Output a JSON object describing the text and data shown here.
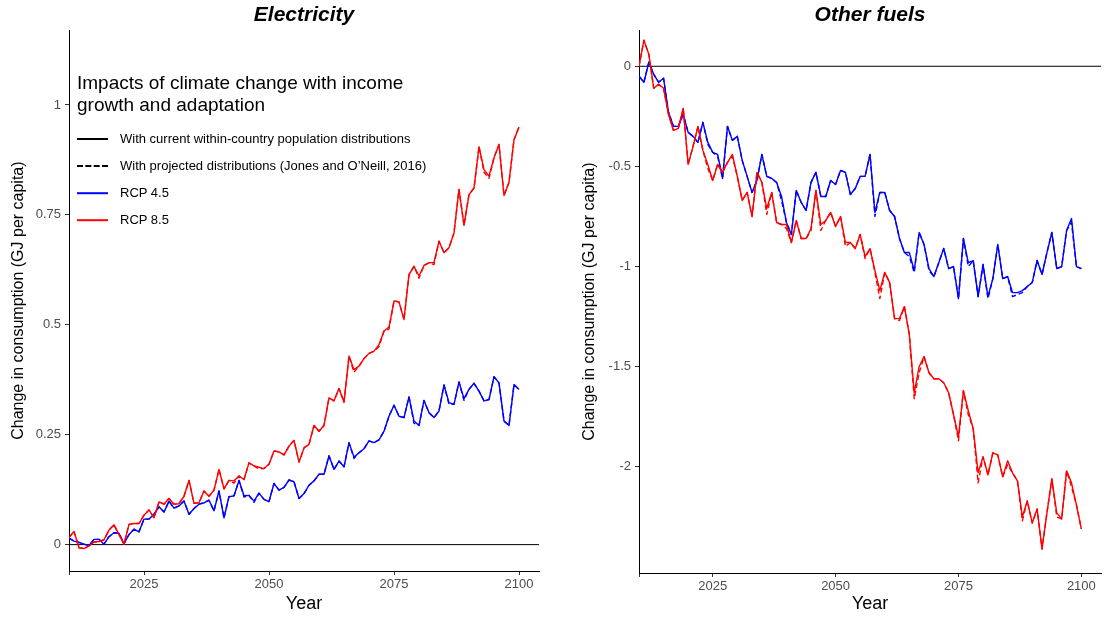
{
  "chart_data": [
    {
      "type": "line",
      "title": "Electricity",
      "xlabel": "Year",
      "ylabel": "Change in consumption (GJ per capita)",
      "legend_title": "Impacts of climate change with income growth and adaptation",
      "annotations": [
        "With current within-country population distributions",
        "With projected distributions (Jones and O’Neill, 2016)"
      ],
      "legend": "top left",
      "x": [
        2010,
        2011,
        2012,
        2013,
        2014,
        2015,
        2016,
        2017,
        2018,
        2019,
        2020,
        2021,
        2022,
        2023,
        2024,
        2025,
        2026,
        2027,
        2028,
        2029,
        2030,
        2031,
        2032,
        2033,
        2034,
        2035,
        2036,
        2037,
        2038,
        2039,
        2040,
        2041,
        2042,
        2043,
        2044,
        2045,
        2046,
        2047,
        2048,
        2049,
        2050,
        2051,
        2052,
        2053,
        2054,
        2055,
        2056,
        2057,
        2058,
        2059,
        2060,
        2061,
        2062,
        2063,
        2064,
        2065,
        2066,
        2067,
        2068,
        2069,
        2070,
        2071,
        2072,
        2073,
        2074,
        2075,
        2076,
        2077,
        2078,
        2079,
        2080,
        2081,
        2082,
        2083,
        2084,
        2085,
        2086,
        2087,
        2088,
        2089,
        2090,
        2091,
        2092,
        2093,
        2094,
        2095,
        2096,
        2097,
        2098,
        2099,
        2100
      ],
      "xlim": [
        2010,
        2104
      ],
      "xticks": [
        {
          "value": 2010,
          "label": null
        },
        2025,
        2050,
        2075,
        2100
      ],
      "ylim": [
        -0.06,
        1.17
      ],
      "yticks": [
        0,
        0.25,
        0.5,
        0.75,
        1
      ],
      "ref_lines": [
        {
          "axis": "y",
          "value": 0,
          "color": "#000000"
        }
      ],
      "series": [
        {
          "name": "RCP 4.5",
          "color": "#0000ff",
          "line_style": "solid",
          "values": [
            0.015,
            0.008,
            0.005,
            0.001,
            -0.002,
            0.012,
            0.012,
            0.001,
            0.018,
            0.027,
            0.026,
            0.002,
            0.023,
            0.035,
            0.029,
            0.058,
            0.058,
            0.069,
            0.086,
            0.074,
            0.099,
            0.083,
            0.088,
            0.099,
            0.069,
            0.082,
            0.092,
            0.095,
            0.101,
            0.077,
            0.122,
            0.061,
            0.109,
            0.111,
            0.146,
            0.111,
            0.112,
            0.099,
            0.117,
            0.103,
            0.098,
            0.139,
            0.124,
            0.13,
            0.147,
            0.143,
            0.105,
            0.116,
            0.135,
            0.145,
            0.16,
            0.16,
            0.202,
            0.171,
            0.19,
            0.177,
            0.232,
            0.199,
            0.209,
            0.218,
            0.236,
            0.232,
            0.238,
            0.258,
            0.292,
            0.317,
            0.292,
            0.289,
            0.336,
            0.281,
            0.271,
            0.328,
            0.3,
            0.289,
            0.304,
            0.363,
            0.323,
            0.319,
            0.37,
            0.332,
            0.353,
            0.367,
            0.349,
            0.327,
            0.33,
            0.382,
            0.368,
            0.281,
            0.271,
            0.364,
            0.353
          ]
        },
        {
          "color": "#0000ff",
          "line_style": "dashed",
          "values": [
            0.015,
            0.008,
            0.005,
            0.001,
            -0.002,
            0.012,
            0.012,
            0.001,
            0.018,
            0.027,
            0.026,
            0.002,
            0.023,
            0.035,
            0.029,
            0.058,
            0.058,
            0.069,
            0.086,
            0.074,
            0.099,
            0.083,
            0.088,
            0.099,
            0.069,
            0.082,
            0.092,
            0.095,
            0.101,
            0.077,
            0.122,
            0.061,
            0.109,
            0.111,
            0.146,
            0.108,
            0.112,
            0.096,
            0.117,
            0.103,
            0.098,
            0.139,
            0.124,
            0.13,
            0.147,
            0.143,
            0.105,
            0.116,
            0.135,
            0.145,
            0.16,
            0.16,
            0.202,
            0.171,
            0.19,
            0.177,
            0.232,
            0.196,
            0.209,
            0.218,
            0.236,
            0.232,
            0.238,
            0.258,
            0.292,
            0.317,
            0.292,
            0.289,
            0.336,
            0.276,
            0.271,
            0.328,
            0.3,
            0.289,
            0.304,
            0.363,
            0.319,
            0.319,
            0.37,
            0.328,
            0.353,
            0.367,
            0.349,
            0.327,
            0.33,
            0.382,
            0.368,
            0.281,
            0.271,
            0.364,
            0.353
          ]
        },
        {
          "name": "RCP 8.5",
          "color": "#ff0000",
          "line_style": "solid",
          "values": [
            0.016,
            0.03,
            -0.007,
            -0.009,
            -0.003,
            0.006,
            0.007,
            0.011,
            0.033,
            0.045,
            0.023,
            0.001,
            0.046,
            0.048,
            0.048,
            0.067,
            0.079,
            0.061,
            0.097,
            0.092,
            0.105,
            0.092,
            0.093,
            0.11,
            0.146,
            0.094,
            0.095,
            0.122,
            0.11,
            0.124,
            0.171,
            0.127,
            0.146,
            0.145,
            0.156,
            0.148,
            0.186,
            0.179,
            0.176,
            0.173,
            0.183,
            0.213,
            0.211,
            0.204,
            0.224,
            0.237,
            0.188,
            0.22,
            0.228,
            0.271,
            0.258,
            0.271,
            0.334,
            0.327,
            0.355,
            0.324,
            0.429,
            0.398,
            0.406,
            0.423,
            0.435,
            0.44,
            0.455,
            0.486,
            0.495,
            0.554,
            0.552,
            0.512,
            0.614,
            0.633,
            0.611,
            0.635,
            0.641,
            0.642,
            0.69,
            0.664,
            0.675,
            0.709,
            0.808,
            0.726,
            0.796,
            0.811,
            0.905,
            0.853,
            0.838,
            0.88,
            0.91,
            0.794,
            0.824,
            0.921,
            0.95
          ]
        },
        {
          "color": "#ff0000",
          "line_style": "dashed",
          "values": [
            0.016,
            0.03,
            -0.007,
            -0.009,
            -0.003,
            0.006,
            0.007,
            0.011,
            0.033,
            0.045,
            0.023,
            0.001,
            0.046,
            0.048,
            0.048,
            0.067,
            0.079,
            0.061,
            0.097,
            0.092,
            0.105,
            0.092,
            0.093,
            0.11,
            0.146,
            0.094,
            0.095,
            0.122,
            0.11,
            0.124,
            0.171,
            0.127,
            0.146,
            0.14,
            0.156,
            0.148,
            0.186,
            0.179,
            0.172,
            0.173,
            0.183,
            0.213,
            0.211,
            0.204,
            0.224,
            0.237,
            0.188,
            0.22,
            0.228,
            0.271,
            0.258,
            0.271,
            0.334,
            0.327,
            0.355,
            0.324,
            0.429,
            0.392,
            0.406,
            0.423,
            0.435,
            0.44,
            0.45,
            0.486,
            0.49,
            0.554,
            0.552,
            0.512,
            0.614,
            0.633,
            0.606,
            0.635,
            0.641,
            0.637,
            0.69,
            0.664,
            0.675,
            0.709,
            0.808,
            0.726,
            0.796,
            0.811,
            0.905,
            0.847,
            0.833,
            0.88,
            0.91,
            0.794,
            0.824,
            0.921,
            0.95
          ]
        }
      ]
    },
    {
      "type": "line",
      "title": "Other fuels",
      "xlabel": "Year",
      "ylabel": "Change in consumption (GJ per capita)",
      "x": [
        2010,
        2011,
        2012,
        2013,
        2014,
        2015,
        2016,
        2017,
        2018,
        2019,
        2020,
        2021,
        2022,
        2023,
        2024,
        2025,
        2026,
        2027,
        2028,
        2029,
        2030,
        2031,
        2032,
        2033,
        2034,
        2035,
        2036,
        2037,
        2038,
        2039,
        2040,
        2041,
        2042,
        2043,
        2044,
        2045,
        2046,
        2047,
        2048,
        2049,
        2050,
        2051,
        2052,
        2053,
        2054,
        2055,
        2056,
        2057,
        2058,
        2059,
        2060,
        2061,
        2062,
        2063,
        2064,
        2065,
        2066,
        2067,
        2068,
        2069,
        2070,
        2071,
        2072,
        2073,
        2074,
        2075,
        2076,
        2077,
        2078,
        2079,
        2080,
        2081,
        2082,
        2083,
        2084,
        2085,
        2086,
        2087,
        2088,
        2089,
        2090,
        2091,
        2092,
        2093,
        2094,
        2095,
        2096,
        2097,
        2098,
        2099,
        2100
      ],
      "xlim": [
        2010,
        2104
      ],
      "xticks": [
        {
          "value": 2010,
          "label": null
        },
        2025,
        2050,
        2075,
        2100
      ],
      "ylim": [
        -2.53,
        0.18
      ],
      "yticks": [
        -2,
        -1.5,
        -1,
        -0.5,
        0
      ],
      "ref_lines": [
        {
          "axis": "y",
          "value": 0,
          "color": "#000000"
        }
      ],
      "series": [
        {
          "color": "#0000ff",
          "line_style": "solid",
          "values": [
            -0.05,
            -0.08,
            0.02,
            -0.04,
            -0.08,
            -0.06,
            -0.23,
            -0.3,
            -0.3,
            -0.24,
            -0.33,
            -0.35,
            -0.38,
            -0.28,
            -0.38,
            -0.43,
            -0.44,
            -0.56,
            -0.3,
            -0.37,
            -0.35,
            -0.47,
            -0.55,
            -0.63,
            -0.57,
            -0.44,
            -0.55,
            -0.56,
            -0.58,
            -0.65,
            -0.78,
            -0.84,
            -0.62,
            -0.68,
            -0.72,
            -0.58,
            -0.53,
            -0.65,
            -0.65,
            -0.57,
            -0.59,
            -0.52,
            -0.53,
            -0.64,
            -0.61,
            -0.55,
            -0.55,
            -0.44,
            -0.73,
            -0.63,
            -0.63,
            -0.72,
            -0.75,
            -0.86,
            -0.93,
            -0.93,
            -1.02,
            -0.83,
            -0.89,
            -1.01,
            -1.05,
            -0.98,
            -0.91,
            -1.01,
            -1,
            -1.16,
            -0.86,
            -0.98,
            -0.97,
            -1.15,
            -0.99,
            -1.15,
            -1.06,
            -0.89,
            -1.06,
            -1.05,
            -1.13,
            -1.13,
            -1.12,
            -1.1,
            -1.08,
            -0.97,
            -1.04,
            -0.93,
            -0.83,
            -1.01,
            -1,
            -0.82,
            -0.76,
            -1,
            -1.01
          ]
        },
        {
          "color": "#0000ff",
          "line_style": "dashed",
          "values": [
            -0.05,
            -0.08,
            0.02,
            -0.04,
            -0.08,
            -0.06,
            -0.23,
            -0.3,
            -0.3,
            -0.24,
            -0.33,
            -0.35,
            -0.38,
            -0.28,
            -0.39,
            -0.43,
            -0.45,
            -0.56,
            -0.3,
            -0.37,
            -0.35,
            -0.47,
            -0.55,
            -0.63,
            -0.57,
            -0.44,
            -0.55,
            -0.56,
            -0.58,
            -0.67,
            -0.78,
            -0.84,
            -0.62,
            -0.68,
            -0.72,
            -0.58,
            -0.53,
            -0.65,
            -0.65,
            -0.57,
            -0.59,
            -0.52,
            -0.53,
            -0.64,
            -0.61,
            -0.55,
            -0.55,
            -0.44,
            -0.75,
            -0.63,
            -0.63,
            -0.72,
            -0.75,
            -0.86,
            -0.93,
            -0.95,
            -1.03,
            -0.83,
            -0.89,
            -1.02,
            -1.05,
            -0.98,
            -0.91,
            -1.01,
            -1,
            -1.16,
            -0.86,
            -1,
            -0.97,
            -1.15,
            -0.99,
            -1.16,
            -1.06,
            -0.89,
            -1.06,
            -1.05,
            -1.15,
            -1.14,
            -1.13,
            -1.1,
            -1.08,
            -0.97,
            -1.04,
            -0.93,
            -0.83,
            -1.01,
            -1,
            -0.82,
            -0.78,
            -1,
            -1.01
          ]
        },
        {
          "color": "#ff0000",
          "line_style": "solid",
          "values": [
            0,
            0.13,
            0.06,
            -0.11,
            -0.09,
            -0.11,
            -0.24,
            -0.32,
            -0.31,
            -0.21,
            -0.49,
            -0.4,
            -0.3,
            -0.42,
            -0.49,
            -0.57,
            -0.49,
            -0.53,
            -0.48,
            -0.44,
            -0.55,
            -0.67,
            -0.63,
            -0.75,
            -0.53,
            -0.58,
            -0.71,
            -0.63,
            -0.78,
            -0.79,
            -0.79,
            -0.88,
            -0.77,
            -0.86,
            -0.86,
            -0.81,
            -0.62,
            -0.79,
            -0.77,
            -0.73,
            -0.8,
            -0.75,
            -0.88,
            -0.88,
            -0.91,
            -0.84,
            -0.95,
            -0.91,
            -1.02,
            -1.12,
            -1.03,
            -1.08,
            -1.26,
            -1.26,
            -1.2,
            -1.34,
            -1.63,
            -1.5,
            -1.45,
            -1.53,
            -1.56,
            -1.56,
            -1.58,
            -1.63,
            -1.74,
            -1.85,
            -1.62,
            -1.72,
            -1.81,
            -2.03,
            -1.95,
            -2.04,
            -1.93,
            -1.94,
            -2.05,
            -1.97,
            -2.03,
            -2.07,
            -2.25,
            -2.17,
            -2.28,
            -2.21,
            -2.41,
            -2.23,
            -2.06,
            -2.23,
            -2.26,
            -2.02,
            -2.08,
            -2.19,
            -2.31
          ]
        },
        {
          "color": "#ff0000",
          "line_style": "dashed",
          "values": [
            0,
            0.13,
            0.06,
            -0.11,
            -0.09,
            -0.11,
            -0.24,
            -0.32,
            -0.31,
            -0.21,
            -0.49,
            -0.4,
            -0.3,
            -0.42,
            -0.51,
            -0.57,
            -0.49,
            -0.53,
            -0.48,
            -0.45,
            -0.55,
            -0.67,
            -0.63,
            -0.75,
            -0.53,
            -0.58,
            -0.74,
            -0.63,
            -0.78,
            -0.79,
            -0.81,
            -0.88,
            -0.77,
            -0.86,
            -0.86,
            -0.82,
            -0.62,
            -0.82,
            -0.77,
            -0.73,
            -0.8,
            -0.75,
            -0.9,
            -0.88,
            -0.91,
            -0.84,
            -0.96,
            -0.91,
            -1.03,
            -1.16,
            -1.03,
            -1.08,
            -1.26,
            -1.27,
            -1.2,
            -1.34,
            -1.66,
            -1.53,
            -1.45,
            -1.53,
            -1.56,
            -1.56,
            -1.58,
            -1.63,
            -1.74,
            -1.87,
            -1.62,
            -1.74,
            -1.81,
            -2.08,
            -1.95,
            -2.04,
            -1.93,
            -1.94,
            -2.05,
            -1.99,
            -2.03,
            -2.07,
            -2.27,
            -2.17,
            -2.28,
            -2.21,
            -2.41,
            -2.23,
            -2.06,
            -2.25,
            -2.26,
            -2.02,
            -2.1,
            -2.19,
            -2.31
          ]
        }
      ]
    }
  ]
}
